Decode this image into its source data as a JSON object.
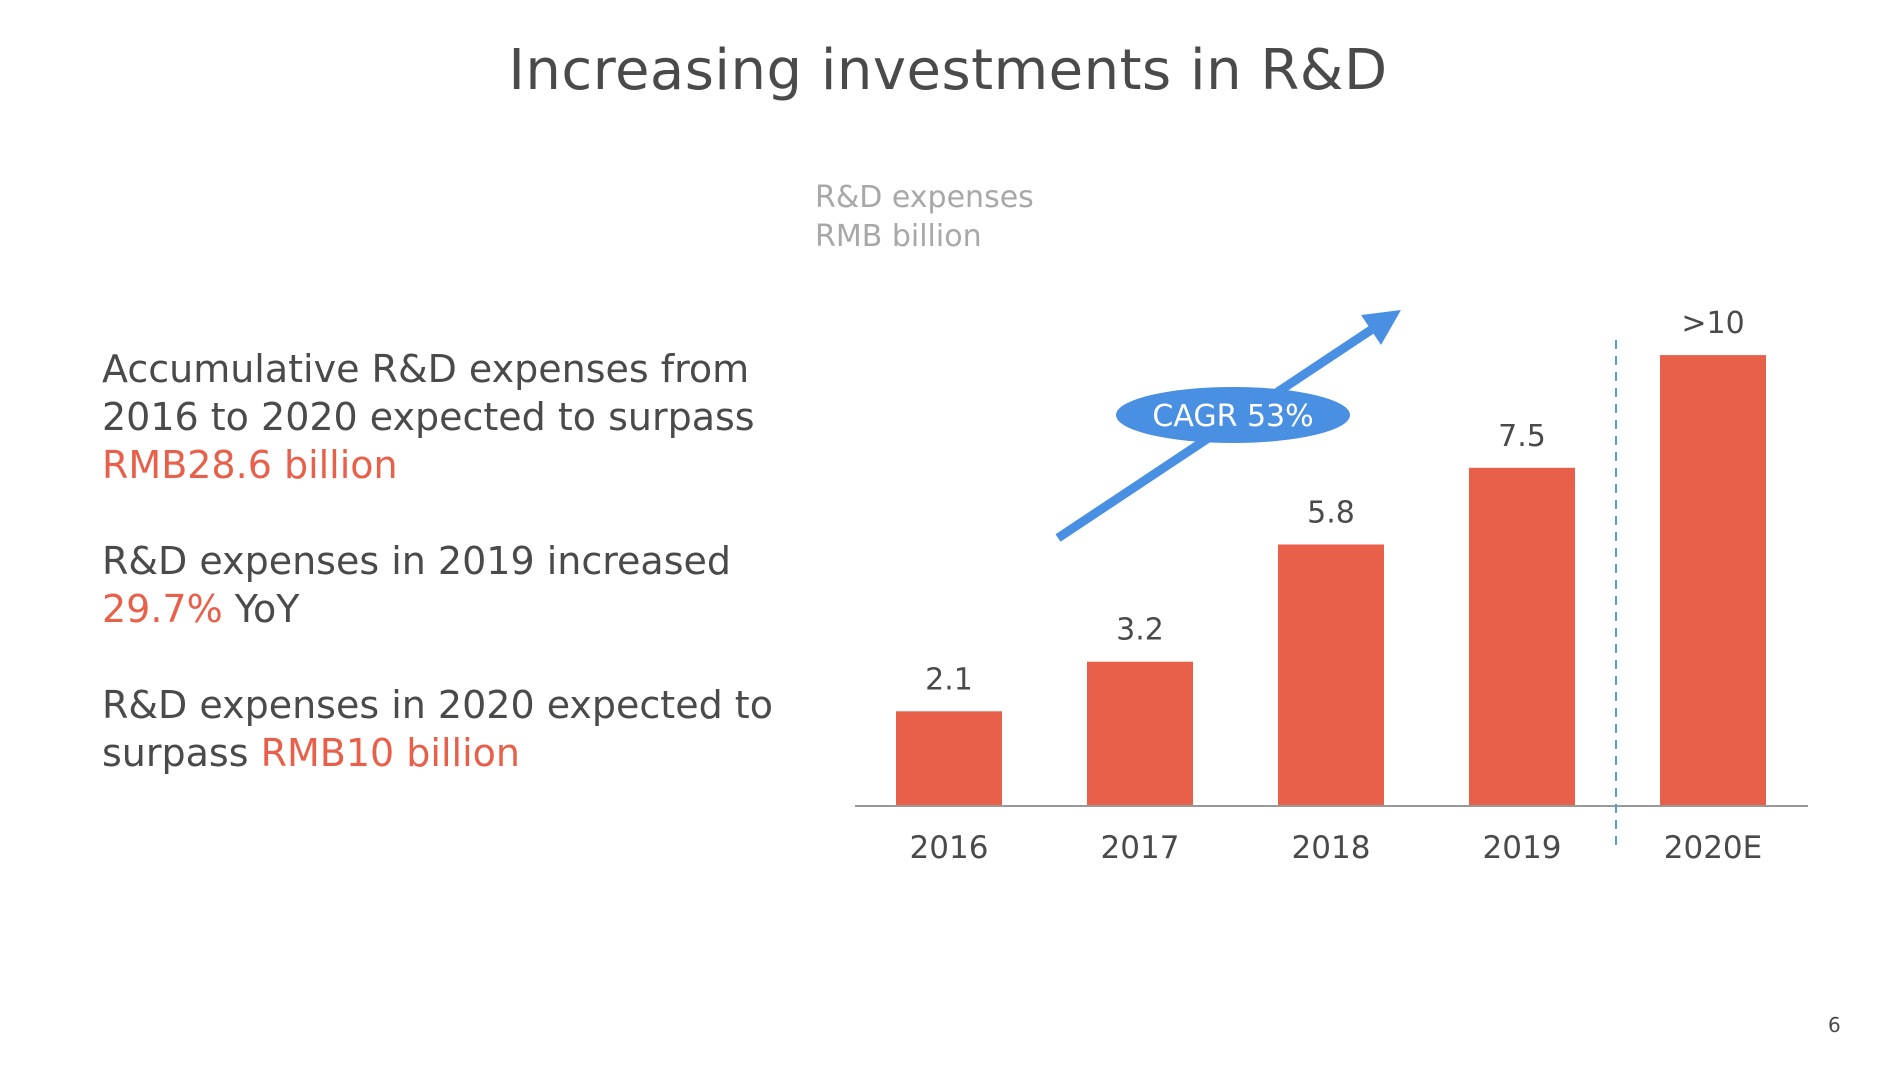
{
  "title": "Increasing investments in R&D",
  "page_number": "6",
  "bullets": [
    {
      "pre": "Accumulative R&D expenses from 2016 to 2020 expected to surpass ",
      "highlight": "RMB28.6 billion",
      "post": ""
    },
    {
      "pre": "R&D expenses in 2019 increased ",
      "highlight": "29.7%",
      "post": " YoY"
    },
    {
      "pre": "R&D expenses in 2020 expected to surpass ",
      "highlight": "RMB10 billion",
      "post": ""
    }
  ],
  "colors": {
    "bar": "#e8604a",
    "highlight": "#e8604a",
    "arrow": "#4a90e2",
    "text": "#4a4a4a",
    "unit": "#a8a8a8",
    "axis": "#999999"
  },
  "chart_data": {
    "type": "bar",
    "title": "",
    "unit_line1": "R&D expenses",
    "unit_line2": "RMB billion",
    "categories": [
      "2016",
      "2017",
      "2018",
      "2019",
      "2020E"
    ],
    "values": [
      2.1,
      3.2,
      5.8,
      7.5,
      10
    ],
    "data_labels": [
      "2.1",
      "3.2",
      "5.8",
      "7.5",
      ">10"
    ],
    "xlabel": "",
    "ylabel": "",
    "ylim": [
      0,
      11
    ],
    "grid": false,
    "annotation": {
      "text": "CAGR 53%"
    },
    "divider_after_index": 3
  }
}
